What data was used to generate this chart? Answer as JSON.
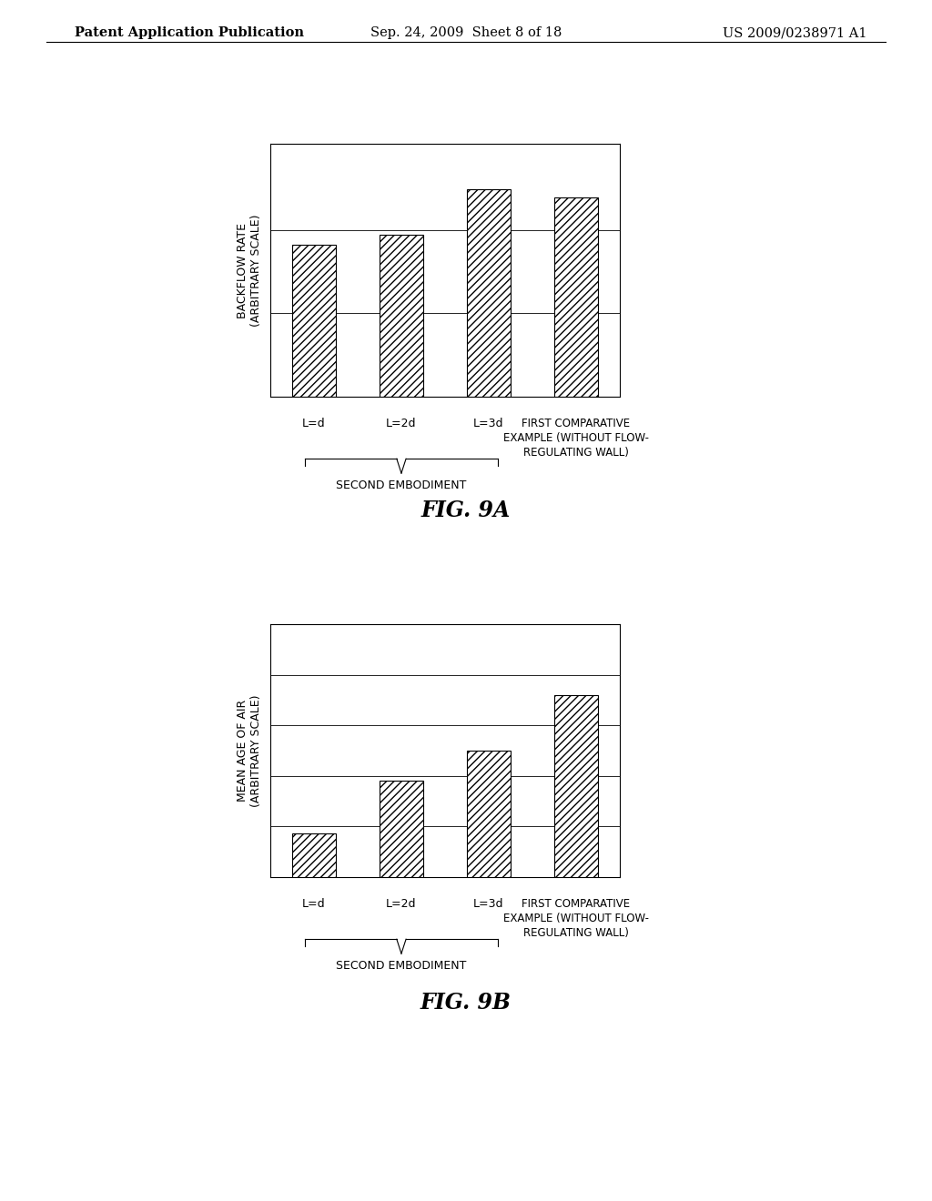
{
  "background_color": "#ffffff",
  "header_left": "Patent Application Publication",
  "header_center": "Sep. 24, 2009  Sheet 8 of 18",
  "header_right": "US 2009/0238971 A1",
  "header_fontsize": 10.5,
  "fig9a": {
    "ylabel": "BACKFLOW RATE\n(ARBITRARY SCALE)",
    "bar_labels": [
      "L=d",
      "L=2d",
      "L=3d",
      ""
    ],
    "values": [
      0.6,
      0.64,
      0.82,
      0.79
    ],
    "ylim": [
      0,
      1.0
    ],
    "yticks": [
      0.0,
      0.33,
      0.66,
      1.0
    ],
    "caption": "FIG. 9A"
  },
  "fig9b": {
    "ylabel": "MEAN AGE OF AIR\n(ARBITRARY SCALE)",
    "bar_labels": [
      "L=d",
      "L=2d",
      "L=3d",
      ""
    ],
    "values": [
      0.17,
      0.38,
      0.5,
      0.72
    ],
    "ylim": [
      0,
      1.0
    ],
    "yticks": [
      0.0,
      0.2,
      0.4,
      0.6,
      0.8,
      1.0
    ],
    "caption": "FIG. 9B"
  },
  "hatch_pattern": "////",
  "bar_edgecolor": "#000000",
  "bar_facecolor": "#ffffff",
  "bar_width": 0.5,
  "axis_label_fontsize": 9,
  "tick_label_fontsize": 9,
  "caption_fontsize": 17,
  "second_embodiment_label": "SECOND EMBODIMENT",
  "first_comparative_label": "FIRST COMPARATIVE\nEXAMPLE (WITHOUT FLOW-\nREGULATING WALL)"
}
